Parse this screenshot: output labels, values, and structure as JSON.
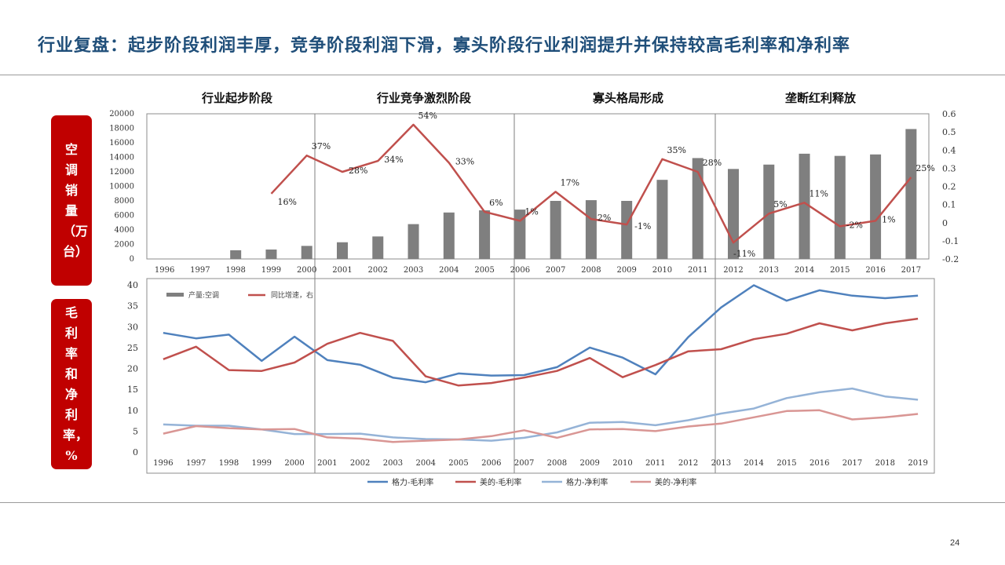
{
  "slide_title": "行业复盘：起步阶段利润丰厚，竞争阶段利润下滑，寡头阶段行业利润提升并保持较高毛利率和净利率",
  "page_number": "24",
  "phases": [
    "行业起步阶段",
    "行业竞争激烈阶段",
    "寡头格局形成",
    "垄断红利释放"
  ],
  "side_labels": {
    "top": "空调销量（万台）",
    "bottom": "毛利率和净利率，%"
  },
  "colors": {
    "title": "#1f4e79",
    "side_box": "#c00000",
    "bar": "#7f7f7f",
    "yoy_line": "#c0504d",
    "gree_gross": "#4f81bd",
    "midea_gross": "#c0504d",
    "gree_net": "#95b3d7",
    "midea_net": "#d99694"
  },
  "chart_data": [
    {
      "type": "bar",
      "categories": [
        "1996",
        "1997",
        "1998",
        "1999",
        "2000",
        "2001",
        "2002",
        "2003",
        "2004",
        "2005",
        "2006",
        "2007",
        "2008",
        "2009",
        "2010",
        "2011",
        "2012",
        "2013",
        "2014",
        "2015",
        "2016",
        "2017"
      ],
      "y_ticks": [
        "20000",
        "18000",
        "16000",
        "14000",
        "12000",
        "10000",
        "8000",
        "6000",
        "4000",
        "2000",
        "0"
      ],
      "y2_ticks": [
        "0.6",
        "0.5",
        "0.4",
        "0.3",
        "0.2",
        "0.1",
        "0",
        "-0.1",
        "-0.2"
      ],
      "ylim": [
        0,
        20000
      ],
      "y2lim": [
        -0.2,
        0.6
      ],
      "series": [
        {
          "name": "产量:空调",
          "axis": "left",
          "values": [
            0,
            0,
            1200,
            1300,
            1800,
            2300,
            3100,
            4800,
            6400,
            6700,
            6800,
            8000,
            8100,
            8000,
            10900,
            13900,
            12400,
            13000,
            14500,
            14200,
            14400,
            17900
          ]
        },
        {
          "name": "同比增速，右",
          "axis": "right",
          "values": [
            null,
            null,
            null,
            0.16,
            0.37,
            0.28,
            0.34,
            0.54,
            0.33,
            0.06,
            0.01,
            0.17,
            0.02,
            -0.01,
            0.35,
            0.28,
            -0.11,
            0.05,
            0.11,
            -0.02,
            0.01,
            0.25
          ],
          "labels": [
            null,
            null,
            null,
            "16%",
            "37%",
            "28%",
            "34%",
            "54%",
            "33%",
            "6%",
            "1%",
            "17%",
            "2%",
            "-1%",
            "35%",
            "28%",
            "-11%",
            "5%",
            "11%",
            "-2%",
            "1%",
            "25%"
          ]
        }
      ],
      "legend": [
        "产量:空调",
        "同比增速，右"
      ],
      "legend_position": "bottom-left"
    },
    {
      "type": "line",
      "categories": [
        "1996",
        "1997",
        "1998",
        "1999",
        "2000",
        "2001",
        "2002",
        "2003",
        "2004",
        "2005",
        "2006",
        "2007",
        "2008",
        "2009",
        "2010",
        "2011",
        "2012",
        "2013",
        "2014",
        "2015",
        "2016",
        "2017",
        "2018",
        "2019"
      ],
      "y_ticks": [
        "40",
        "35",
        "30",
        "25",
        "20",
        "15",
        "10",
        "5",
        "0"
      ],
      "ylim": [
        0,
        40
      ],
      "series": [
        {
          "name": "格力-毛利率",
          "values": [
            28.5,
            27.2,
            28.1,
            21.8,
            27.6,
            22.0,
            20.9,
            17.8,
            16.7,
            18.8,
            18.3,
            18.4,
            20.3,
            25.0,
            22.6,
            18.6,
            27.5,
            34.6,
            39.9,
            36.2,
            38.7,
            37.4,
            36.8,
            37.4
          ]
        },
        {
          "name": "美的-毛利率",
          "values": [
            22.2,
            25.2,
            19.6,
            19.4,
            21.4,
            25.9,
            28.5,
            26.6,
            18.1,
            15.9,
            16.5,
            17.8,
            19.4,
            22.5,
            17.9,
            20.8,
            24.1,
            24.6,
            27.0,
            28.3,
            30.8,
            29.1,
            30.8,
            31.9
          ]
        },
        {
          "name": "格力-净利率",
          "values": [
            6.6,
            6.3,
            6.3,
            5.4,
            4.3,
            4.3,
            4.4,
            3.5,
            3.1,
            3.0,
            2.7,
            3.4,
            4.7,
            7.0,
            7.2,
            6.4,
            7.6,
            9.2,
            10.4,
            12.9,
            14.3,
            15.2,
            13.3,
            12.5
          ]
        },
        {
          "name": "美的-净利率",
          "values": [
            4.4,
            6.2,
            5.7,
            5.4,
            5.5,
            3.5,
            3.2,
            2.4,
            2.7,
            3.0,
            3.8,
            5.2,
            3.4,
            5.4,
            5.5,
            5.0,
            6.1,
            6.8,
            8.3,
            9.8,
            10.0,
            7.8,
            8.3,
            9.1
          ]
        }
      ],
      "legend": [
        "格力-毛利率",
        "美的-毛利率",
        "格力-净利率",
        "美的-净利率"
      ],
      "legend_position": "bottom"
    }
  ]
}
